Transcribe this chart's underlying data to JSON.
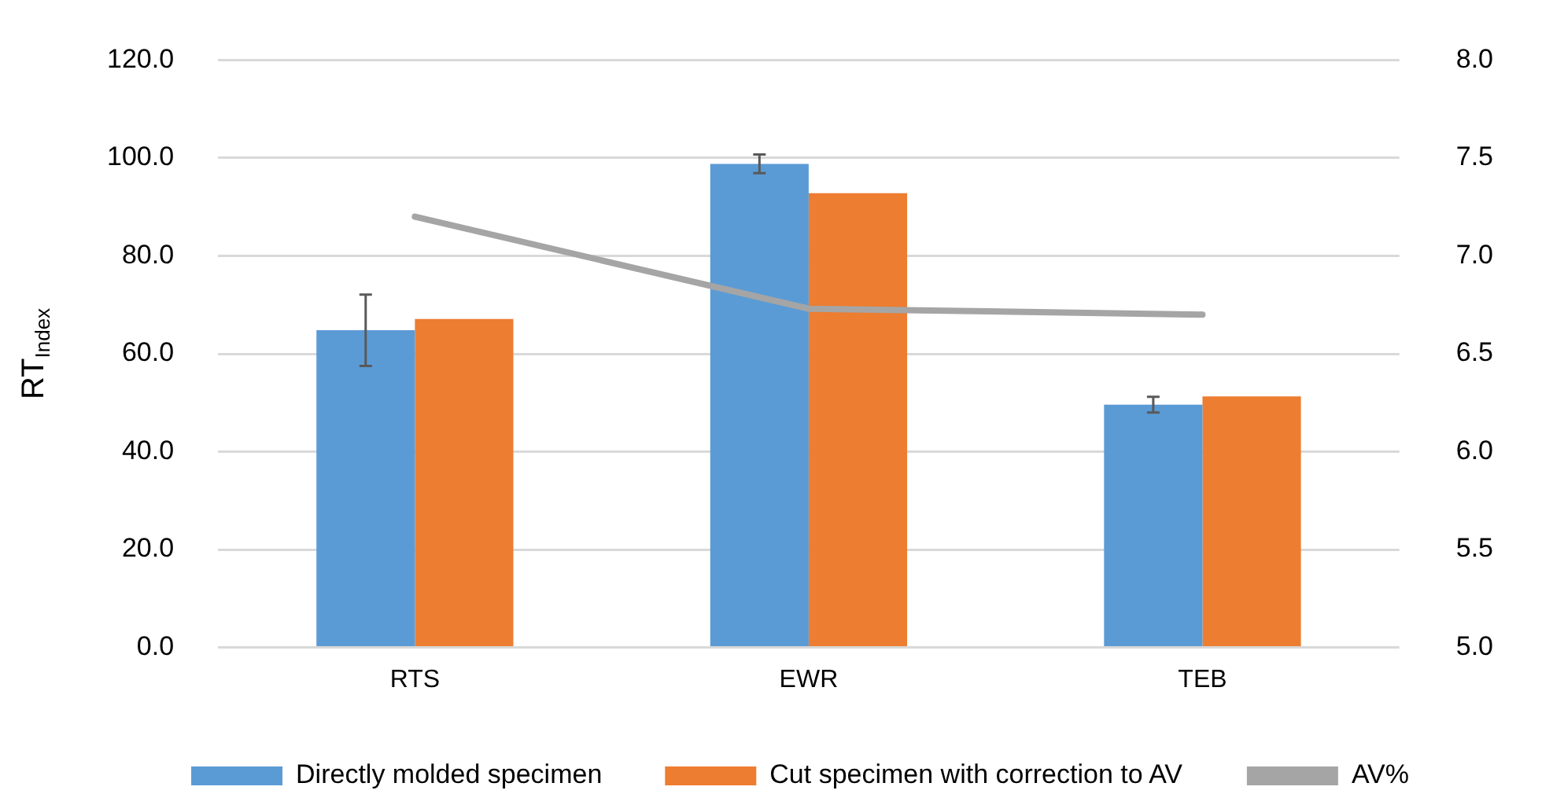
{
  "chart_data": {
    "type": "bar",
    "ylabel": "RT$_{Index}$",
    "categories": [
      "RTS",
      "EWR",
      "TEB"
    ],
    "series": [
      {
        "name": "Directly molded specimen",
        "color": "#5b9bd5",
        "values": [
          64.8,
          98.8,
          49.6
        ],
        "errors": [
          7.3,
          1.9,
          1.6
        ]
      },
      {
        "name": "Cut specimen with correction to AV",
        "color": "#ed7d31",
        "values": [
          67.1,
          92.8,
          51.3
        ]
      },
      {
        "name": "AV%",
        "type": "line",
        "axis": "y2",
        "color": "#a5a5a5",
        "values": [
          7.2,
          6.73,
          6.7
        ]
      }
    ],
    "ylim": [
      0,
      120
    ],
    "yticks": [
      {
        "value": 0,
        "label": "0.0"
      },
      {
        "value": 20,
        "label": "20.0"
      },
      {
        "value": 40,
        "label": "40.0"
      },
      {
        "value": 60,
        "label": "60.0"
      },
      {
        "value": 80,
        "label": "80.0"
      },
      {
        "value": 100,
        "label": "100.0"
      },
      {
        "value": 120,
        "label": "120.0"
      }
    ],
    "y2lim": [
      5,
      8
    ],
    "y2ticks": [
      {
        "value": 5,
        "label": "5.0"
      },
      {
        "value": 5.5,
        "label": "5.5"
      },
      {
        "value": 6,
        "label": "6.0"
      },
      {
        "value": 6.5,
        "label": "6.5"
      },
      {
        "value": 7,
        "label": "7.0"
      },
      {
        "value": 7.5,
        "label": "7.5"
      },
      {
        "value": 8,
        "label": "8.0"
      }
    ],
    "grid": "y",
    "legend": "bottom",
    "marker": "none"
  }
}
